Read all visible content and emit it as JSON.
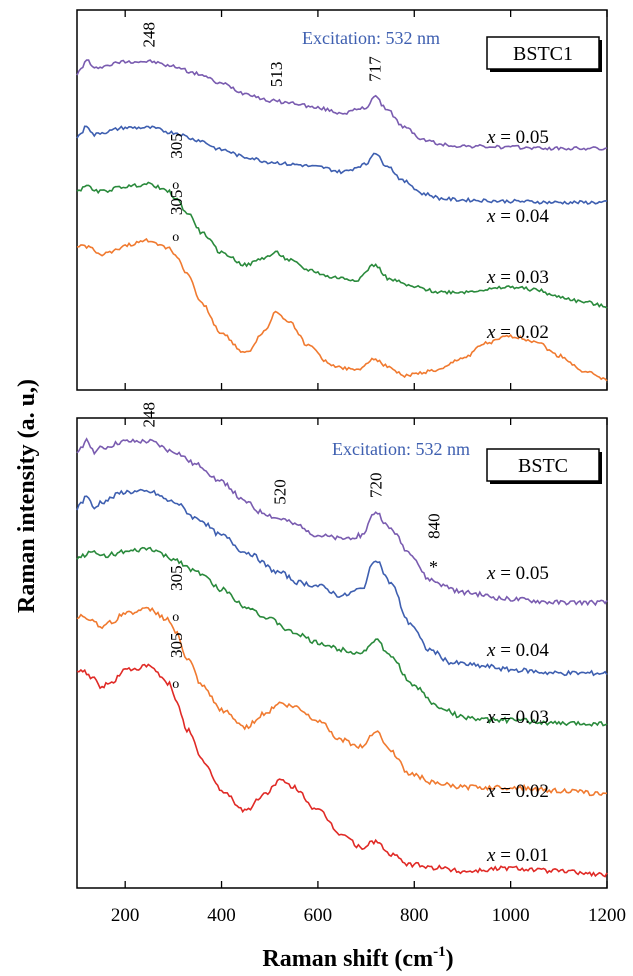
{
  "chart_data": [
    {
      "type": "line",
      "panel": "top",
      "tag": "BSTC1",
      "excitation": "Excitation: 532 nm",
      "xlabel": "Raman shift (cm-1)",
      "ylabel": "Raman intensity (a. u,)",
      "xlim": [
        100,
        1200
      ],
      "x_ticks": [
        "200",
        "400",
        "600",
        "800",
        "1000",
        "1200"
      ],
      "y_ticks_shown": false,
      "peak_labels": [
        {
          "text": "248",
          "x": 248
        },
        {
          "text": "513",
          "x": 513
        },
        {
          "text": "717",
          "x": 717
        },
        {
          "text": "305",
          "x": 305,
          "marker": "o",
          "series": "x = 0.03"
        },
        {
          "text": "305",
          "x": 305,
          "marker": "o",
          "series": "x = 0.02"
        }
      ],
      "series": [
        {
          "name": "x = 0.05",
          "color": "#7a5cb0",
          "x": [
            100,
            110,
            120,
            135,
            150,
            200,
            250,
            300,
            350,
            400,
            450,
            500,
            550,
            600,
            650,
            700,
            717,
            740,
            780,
            820,
            860,
            900,
            1000,
            1100,
            1200
          ],
          "y": [
            0.84,
            0.86,
            0.9,
            0.86,
            0.87,
            0.89,
            0.89,
            0.87,
            0.84,
            0.8,
            0.76,
            0.73,
            0.72,
            0.7,
            0.68,
            0.7,
            0.75,
            0.7,
            0.62,
            0.57,
            0.55,
            0.545,
            0.54,
            0.535,
            0.535
          ]
        },
        {
          "name": "x = 0.04",
          "color": "#3e5fb0",
          "x": [
            100,
            110,
            120,
            135,
            150,
            200,
            250,
            300,
            350,
            400,
            450,
            500,
            550,
            600,
            650,
            700,
            717,
            740,
            780,
            820,
            860,
            900,
            1000,
            1100,
            1200
          ],
          "y": [
            0.58,
            0.6,
            0.63,
            0.59,
            0.6,
            0.62,
            0.62,
            0.6,
            0.57,
            0.53,
            0.5,
            0.48,
            0.47,
            0.46,
            0.44,
            0.47,
            0.52,
            0.47,
            0.4,
            0.35,
            0.33,
            0.325,
            0.32,
            0.315,
            0.315
          ]
        },
        {
          "name": "x = 0.03",
          "color": "#2a8a3c",
          "x": [
            100,
            110,
            120,
            135,
            150,
            200,
            250,
            290,
            305,
            330,
            360,
            400,
            450,
            490,
            513,
            540,
            580,
            630,
            680,
            717,
            750,
            800,
            850,
            900,
            950,
            1000,
            1050,
            1100,
            1150,
            1200
          ],
          "y": [
            0.36,
            0.37,
            0.39,
            0.36,
            0.36,
            0.38,
            0.39,
            0.36,
            0.33,
            0.27,
            0.19,
            0.11,
            0.06,
            0.09,
            0.11,
            0.08,
            0.04,
            0.01,
            0.0,
            0.06,
            0.0,
            -0.03,
            -0.05,
            -0.05,
            -0.04,
            -0.03,
            -0.04,
            -0.07,
            -0.09,
            -0.11
          ]
        },
        {
          "name": "x = 0.02",
          "color": "#f07a30",
          "x": [
            100,
            110,
            130,
            150,
            170,
            200,
            250,
            290,
            305,
            330,
            360,
            400,
            450,
            490,
            513,
            540,
            580,
            630,
            680,
            717,
            740,
            780,
            850,
            900,
            950,
            1000,
            1050,
            1100,
            1150,
            1200
          ],
          "y": [
            0.13,
            0.14,
            0.13,
            0.1,
            0.11,
            0.14,
            0.16,
            0.13,
            0.1,
            0.02,
            -0.1,
            -0.22,
            -0.3,
            -0.21,
            -0.13,
            -0.17,
            -0.27,
            -0.35,
            -0.37,
            -0.32,
            -0.35,
            -0.39,
            -0.37,
            -0.32,
            -0.26,
            -0.23,
            -0.25,
            -0.31,
            -0.37,
            -0.41
          ]
        }
      ]
    },
    {
      "type": "line",
      "panel": "bottom",
      "tag": "BSTC",
      "excitation": "Excitation: 532 nm",
      "xlabel": "Raman shift (cm-1)",
      "ylabel": "Raman intensity (a. u,)",
      "xlim": [
        100,
        1200
      ],
      "x_ticks": [
        "200",
        "400",
        "600",
        "800",
        "1000",
        "1200"
      ],
      "y_ticks_shown": false,
      "peak_labels": [
        {
          "text": "248",
          "x": 248
        },
        {
          "text": "520",
          "x": 520
        },
        {
          "text": "720",
          "x": 720
        },
        {
          "text": "840",
          "x": 840,
          "marker": "*",
          "series": "x = 0.05"
        },
        {
          "text": "305",
          "x": 305,
          "marker": "o",
          "series": "x = 0.02"
        },
        {
          "text": "305",
          "x": 305,
          "marker": "o",
          "series": "x = 0.01"
        }
      ],
      "series": [
        {
          "name": "x = 0.05",
          "color": "#7a5cb0",
          "x": [
            100,
            110,
            120,
            135,
            150,
            200,
            250,
            300,
            350,
            400,
            450,
            480,
            520,
            560,
            600,
            650,
            690,
            720,
            750,
            790,
            830,
            850,
            860,
            900,
            1000,
            1100,
            1200
          ],
          "y": [
            0.82,
            0.84,
            0.87,
            0.83,
            0.84,
            0.86,
            0.86,
            0.83,
            0.79,
            0.74,
            0.68,
            0.65,
            0.63,
            0.61,
            0.58,
            0.57,
            0.58,
            0.65,
            0.6,
            0.53,
            0.45,
            0.44,
            0.43,
            0.41,
            0.39,
            0.38,
            0.38
          ]
        },
        {
          "name": "x = 0.04",
          "color": "#3e5fb0",
          "x": [
            100,
            110,
            120,
            135,
            150,
            200,
            250,
            300,
            350,
            400,
            450,
            520,
            560,
            600,
            650,
            690,
            720,
            750,
            790,
            830,
            880,
            950,
            1000,
            1100,
            1200
          ],
          "y": [
            0.66,
            0.68,
            0.7,
            0.66,
            0.68,
            0.71,
            0.71,
            0.68,
            0.63,
            0.58,
            0.53,
            0.47,
            0.44,
            0.43,
            0.4,
            0.42,
            0.51,
            0.44,
            0.32,
            0.24,
            0.2,
            0.19,
            0.18,
            0.17,
            0.17
          ]
        },
        {
          "name": "x = 0.03",
          "color": "#2a8a3c",
          "x": [
            100,
            110,
            130,
            150,
            200,
            250,
            300,
            350,
            400,
            450,
            500,
            550,
            600,
            650,
            690,
            720,
            750,
            800,
            850,
            900,
            950,
            1000,
            1100,
            1200
          ],
          "y": [
            0.51,
            0.52,
            0.53,
            0.52,
            0.53,
            0.54,
            0.51,
            0.47,
            0.42,
            0.37,
            0.33,
            0.29,
            0.26,
            0.24,
            0.23,
            0.27,
            0.22,
            0.13,
            0.07,
            0.04,
            0.03,
            0.03,
            0.02,
            0.02
          ]
        },
        {
          "name": "x = 0.02",
          "color": "#f07a30",
          "x": [
            100,
            110,
            130,
            150,
            170,
            200,
            250,
            290,
            305,
            330,
            360,
            400,
            450,
            490,
            520,
            550,
            600,
            650,
            690,
            720,
            750,
            790,
            850,
            900,
            1000,
            1100,
            1200
          ],
          "y": [
            0.33,
            0.34,
            0.33,
            0.31,
            0.32,
            0.35,
            0.36,
            0.33,
            0.29,
            0.21,
            0.13,
            0.06,
            0.01,
            0.05,
            0.08,
            0.07,
            0.03,
            -0.03,
            -0.05,
            0.0,
            -0.06,
            -0.13,
            -0.16,
            -0.17,
            -0.17,
            -0.18,
            -0.19
          ]
        },
        {
          "name": "x = 0.01",
          "color": "#e02a26",
          "x": [
            100,
            110,
            130,
            150,
            170,
            200,
            250,
            290,
            305,
            330,
            360,
            400,
            450,
            490,
            520,
            550,
            600,
            650,
            690,
            720,
            750,
            790,
            850,
            900,
            1000,
            1100,
            1200
          ],
          "y": [
            0.17,
            0.18,
            0.16,
            0.13,
            0.14,
            0.18,
            0.19,
            0.14,
            0.09,
            0.0,
            -0.09,
            -0.18,
            -0.24,
            -0.19,
            -0.15,
            -0.17,
            -0.24,
            -0.31,
            -0.35,
            -0.33,
            -0.37,
            -0.4,
            -0.41,
            -0.42,
            -0.41,
            -0.42,
            -0.43
          ]
        }
      ]
    }
  ]
}
